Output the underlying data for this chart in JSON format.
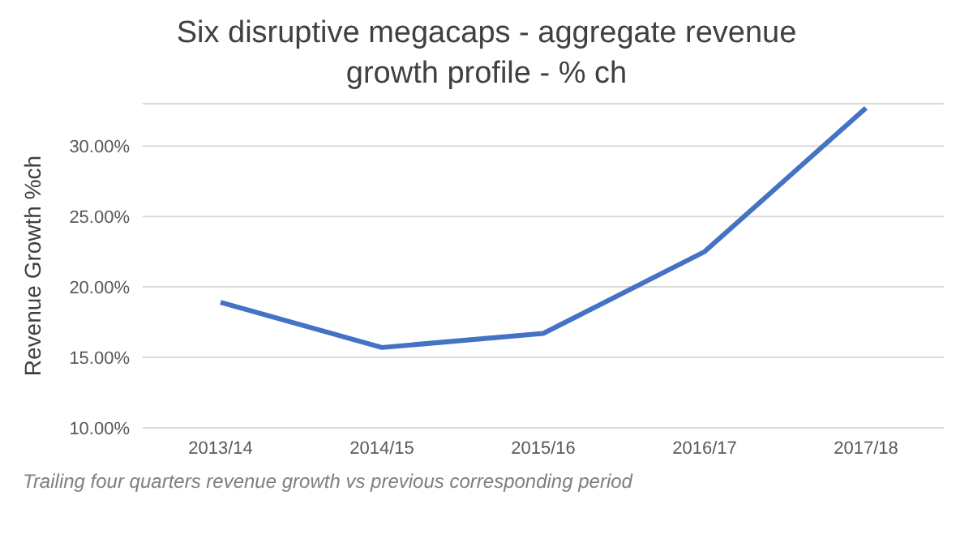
{
  "chart_data": {
    "type": "line",
    "title": "Six disruptive megacaps - aggregate revenue growth profile - % ch",
    "ylabel": "Revenue Growth %ch",
    "categories": [
      "2013/14",
      "2014/15",
      "2015/16",
      "2016/17",
      "2017/18"
    ],
    "series": [
      {
        "color": "#4472c4",
        "values": [
          18.9,
          15.7,
          16.7,
          22.5,
          32.7
        ]
      }
    ],
    "ylim": [
      10,
      33
    ],
    "yticks": [
      {
        "value": 10,
        "label": "10.00%"
      },
      {
        "value": 15,
        "label": "15.00%"
      },
      {
        "value": 20,
        "label": "20.00%"
      },
      {
        "value": 25,
        "label": "25.00%"
      },
      {
        "value": 30,
        "label": "30.00%"
      }
    ],
    "grid": "y",
    "legend": false,
    "marker": "none",
    "line_style": "solid",
    "annotations": [
      "Trailing four quarters revenue growth vs previous corresponding period"
    ]
  }
}
